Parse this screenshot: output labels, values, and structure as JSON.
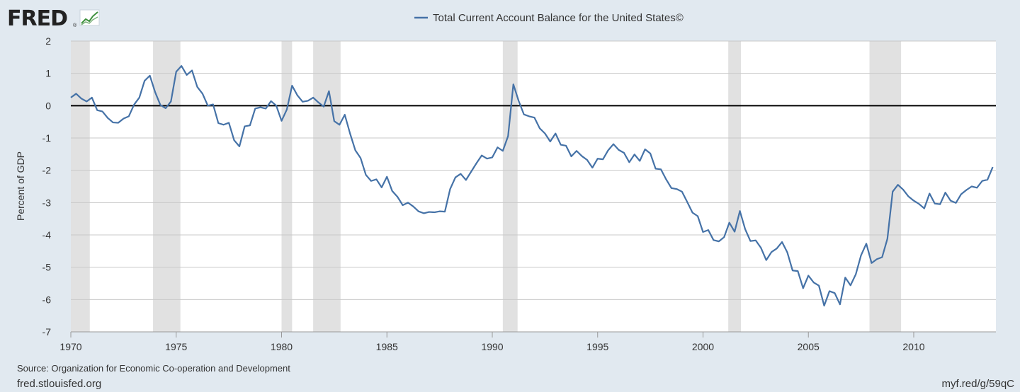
{
  "header": {
    "logo_text": "FRED",
    "logo_mark": "®"
  },
  "footer": {
    "source": "Source: Organization for Economic Co-operation and Development",
    "site": "fred.stlouisfed.org",
    "short_url": "myf.red/g/59qC"
  },
  "colors": {
    "background": "#e1e9f0",
    "plot_bg": "#ffffff",
    "series": "#4572a7",
    "recession": "#e1e1e1",
    "grid": "#c8c8c8",
    "zero_line": "#000000"
  },
  "chart_data": {
    "type": "line",
    "title": "",
    "xlabel": "",
    "ylabel": "Percent of GDP",
    "ylim": [
      -7,
      2
    ],
    "yticks": [
      2,
      1,
      0,
      -1,
      -2,
      -3,
      -4,
      -5,
      -6,
      -7
    ],
    "xlim": [
      1970,
      2013.9
    ],
    "xticks": [
      1970,
      1975,
      1980,
      1985,
      1990,
      1995,
      2000,
      2005,
      2010
    ],
    "legend": "top-center",
    "grid": true,
    "recessions": [
      [
        1970.0,
        1970.9
      ],
      [
        1973.9,
        1975.2
      ],
      [
        1980.0,
        1980.5
      ],
      [
        1981.5,
        1982.8
      ],
      [
        1990.5,
        1991.2
      ],
      [
        2001.2,
        2001.8
      ],
      [
        2007.9,
        2009.4
      ]
    ],
    "series": [
      {
        "name": "Total Current Account Balance for the United States©",
        "x_start": 1970.0,
        "x_step": 0.25,
        "values": [
          0.25,
          0.37,
          0.22,
          0.13,
          0.25,
          -0.14,
          -0.18,
          -0.38,
          -0.52,
          -0.53,
          -0.4,
          -0.33,
          0.03,
          0.25,
          0.77,
          0.93,
          0.42,
          0.02,
          -0.08,
          0.13,
          1.05,
          1.23,
          0.95,
          1.09,
          0.58,
          0.37,
          0.0,
          0.04,
          -0.54,
          -0.59,
          -0.53,
          -1.07,
          -1.26,
          -0.64,
          -0.61,
          -0.09,
          -0.05,
          -0.09,
          0.14,
          0.0,
          -0.47,
          -0.12,
          0.62,
          0.32,
          0.12,
          0.15,
          0.25,
          0.1,
          -0.03,
          0.45,
          -0.48,
          -0.59,
          -0.28,
          -0.86,
          -1.38,
          -1.62,
          -2.14,
          -2.33,
          -2.28,
          -2.53,
          -2.2,
          -2.64,
          -2.82,
          -3.08,
          -3.0,
          -3.12,
          -3.27,
          -3.33,
          -3.29,
          -3.3,
          -3.27,
          -3.28,
          -2.58,
          -2.22,
          -2.11,
          -2.3,
          -2.04,
          -1.78,
          -1.54,
          -1.64,
          -1.6,
          -1.29,
          -1.4,
          -0.94,
          0.66,
          0.15,
          -0.27,
          -0.33,
          -0.37,
          -0.7,
          -0.86,
          -1.11,
          -0.86,
          -1.21,
          -1.24,
          -1.57,
          -1.4,
          -1.56,
          -1.68,
          -1.92,
          -1.64,
          -1.66,
          -1.38,
          -1.19,
          -1.37,
          -1.46,
          -1.75,
          -1.51,
          -1.71,
          -1.35,
          -1.48,
          -1.95,
          -1.97,
          -2.28,
          -2.55,
          -2.58,
          -2.66,
          -2.98,
          -3.31,
          -3.42,
          -3.91,
          -3.85,
          -4.16,
          -4.2,
          -4.07,
          -3.62,
          -3.9,
          -3.26,
          -3.82,
          -4.19,
          -4.17,
          -4.4,
          -4.78,
          -4.53,
          -4.42,
          -4.22,
          -4.54,
          -5.1,
          -5.12,
          -5.65,
          -5.26,
          -5.47,
          -5.57,
          -6.19,
          -5.74,
          -5.8,
          -6.15,
          -5.32,
          -5.56,
          -5.22,
          -4.63,
          -4.27,
          -4.87,
          -4.75,
          -4.69,
          -4.12,
          -2.66,
          -2.45,
          -2.6,
          -2.81,
          -2.94,
          -3.04,
          -3.18,
          -2.72,
          -3.03,
          -3.05,
          -2.69,
          -2.94,
          -3.01,
          -2.74,
          -2.61,
          -2.5,
          -2.54,
          -2.33,
          -2.29,
          -1.9
        ]
      }
    ]
  }
}
